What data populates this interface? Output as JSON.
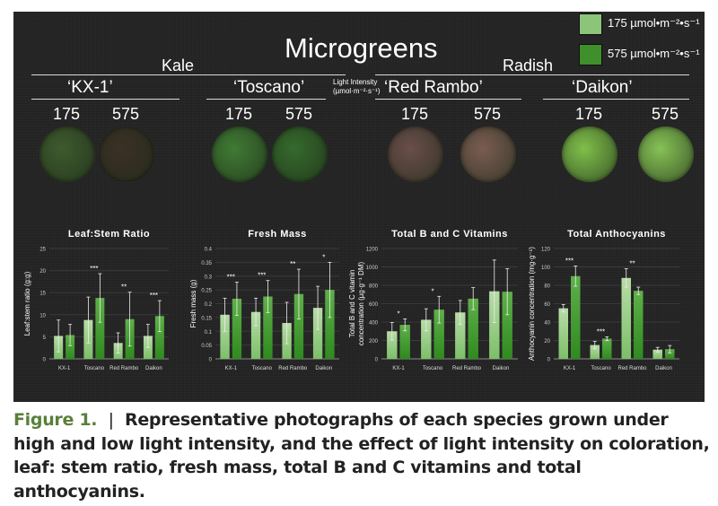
{
  "header": {
    "title": "Microgreens",
    "group_kale": "Kale",
    "group_radish": "Radish",
    "light_intensity_label_1": "Light Intensity",
    "light_intensity_label_2": "(µmol·m⁻²·s⁻¹)",
    "varieties": [
      "‘KX-1’",
      "‘Toscano’",
      "‘Red Rambo’",
      "‘Daikon’"
    ],
    "intensities": [
      "175",
      "575"
    ]
  },
  "legend": [
    {
      "label": "175 µmol•m⁻²•s⁻¹",
      "color": "#8cc57a"
    },
    {
      "label": "575 µmol•m⁻²•s⁻¹",
      "color": "#3f8f2c"
    }
  ],
  "photo_colors": [
    [
      "#3e5a2e",
      "#3b3026"
    ],
    [
      "#3f7a33",
      "#356a2c"
    ],
    [
      "#6a4e4a",
      "#7a5c52"
    ],
    [
      "#7fbf4a",
      "#86c255"
    ]
  ],
  "chart_data": [
    {
      "type": "bar",
      "title": "Leaf:Stem Ratio",
      "ylabel": "Leaf:stem ratio (g:g)",
      "categories": [
        "KX-1",
        "Toscano",
        "Red Rambo",
        "Daikon"
      ],
      "ylim": [
        0,
        25
      ],
      "yticks": [
        "0",
        "5",
        "10",
        "15",
        "20",
        "25"
      ],
      "grid": true,
      "series": [
        {
          "values": [
            5.2,
            8.8,
            3.6,
            5.2
          ],
          "error": [
            3.6,
            5.2,
            2.3,
            2.6
          ]
        },
        {
          "values": [
            5.4,
            13.8,
            9.0,
            9.7
          ],
          "error": [
            2.4,
            5.5,
            6.1,
            3.5
          ]
        }
      ],
      "significance": [
        "",
        "***",
        "**",
        "***"
      ]
    },
    {
      "type": "bar",
      "title": "Fresh Mass",
      "ylabel": "Fresh mass (g)",
      "categories": [
        "KX-1",
        "Toscano",
        "Red Rambo",
        "Daikon"
      ],
      "ylim": [
        0,
        0.4
      ],
      "yticks": [
        "0",
        "0.05",
        "0.1",
        "0.15",
        "0.2",
        "0.25",
        "0.3",
        "0.35",
        "0.4"
      ],
      "grid": true,
      "series": [
        {
          "values": [
            0.16,
            0.17,
            0.13,
            0.185
          ],
          "error": [
            0.06,
            0.05,
            0.075,
            0.078
          ]
        },
        {
          "values": [
            0.218,
            0.226,
            0.235,
            0.25
          ],
          "error": [
            0.06,
            0.058,
            0.09,
            0.1
          ]
        }
      ],
      "significance": [
        "***",
        "***",
        "**",
        "*"
      ]
    },
    {
      "type": "bar",
      "title": "Total B and C Vitamins",
      "ylabel": "Total B and C vitamin",
      "ylabel2": "concentration (µg·g⁻¹ DM)",
      "categories": [
        "KX-1",
        "Toscano",
        "Red Rambo",
        "Daikon"
      ],
      "ylim": [
        0,
        1200
      ],
      "yticks": [
        "0",
        "200",
        "400",
        "600",
        "800",
        "1000",
        "1200"
      ],
      "grid": true,
      "series": [
        {
          "values": [
            300,
            425,
            505,
            735
          ],
          "error": [
            95,
            120,
            130,
            340
          ]
        },
        {
          "values": [
            370,
            535,
            655,
            730
          ],
          "error": [
            65,
            145,
            120,
            250
          ]
        }
      ],
      "significance": [
        "*",
        "*",
        "",
        ""
      ]
    },
    {
      "type": "bar",
      "title": "Total Anthocyanins",
      "ylabel": "Anthocyanin concentration (mg·g⁻¹)",
      "categories": [
        "KX-1",
        "Toscano",
        "Red Rambo",
        "Daikon"
      ],
      "ylim": [
        0,
        120
      ],
      "yticks": [
        "0",
        "20",
        "40",
        "60",
        "80",
        "100",
        "120"
      ],
      "grid": true,
      "series": [
        {
          "values": [
            55,
            15,
            88,
            10
          ],
          "error": [
            4,
            4,
            10,
            2.5
          ]
        },
        {
          "values": [
            90,
            22,
            74,
            10.5
          ],
          "error": [
            11,
            2,
            4,
            4
          ]
        }
      ],
      "significance": [
        "***",
        "***",
        "**",
        ""
      ]
    }
  ],
  "caption": {
    "label": "Figure 1.",
    "separator": "|",
    "text": "Representative photographs of each species grown under high and low light intensity, and the effect of light intensity on coloration, leaf: stem ratio, fresh mass, total B and C vitamins and total anthocyanins."
  }
}
